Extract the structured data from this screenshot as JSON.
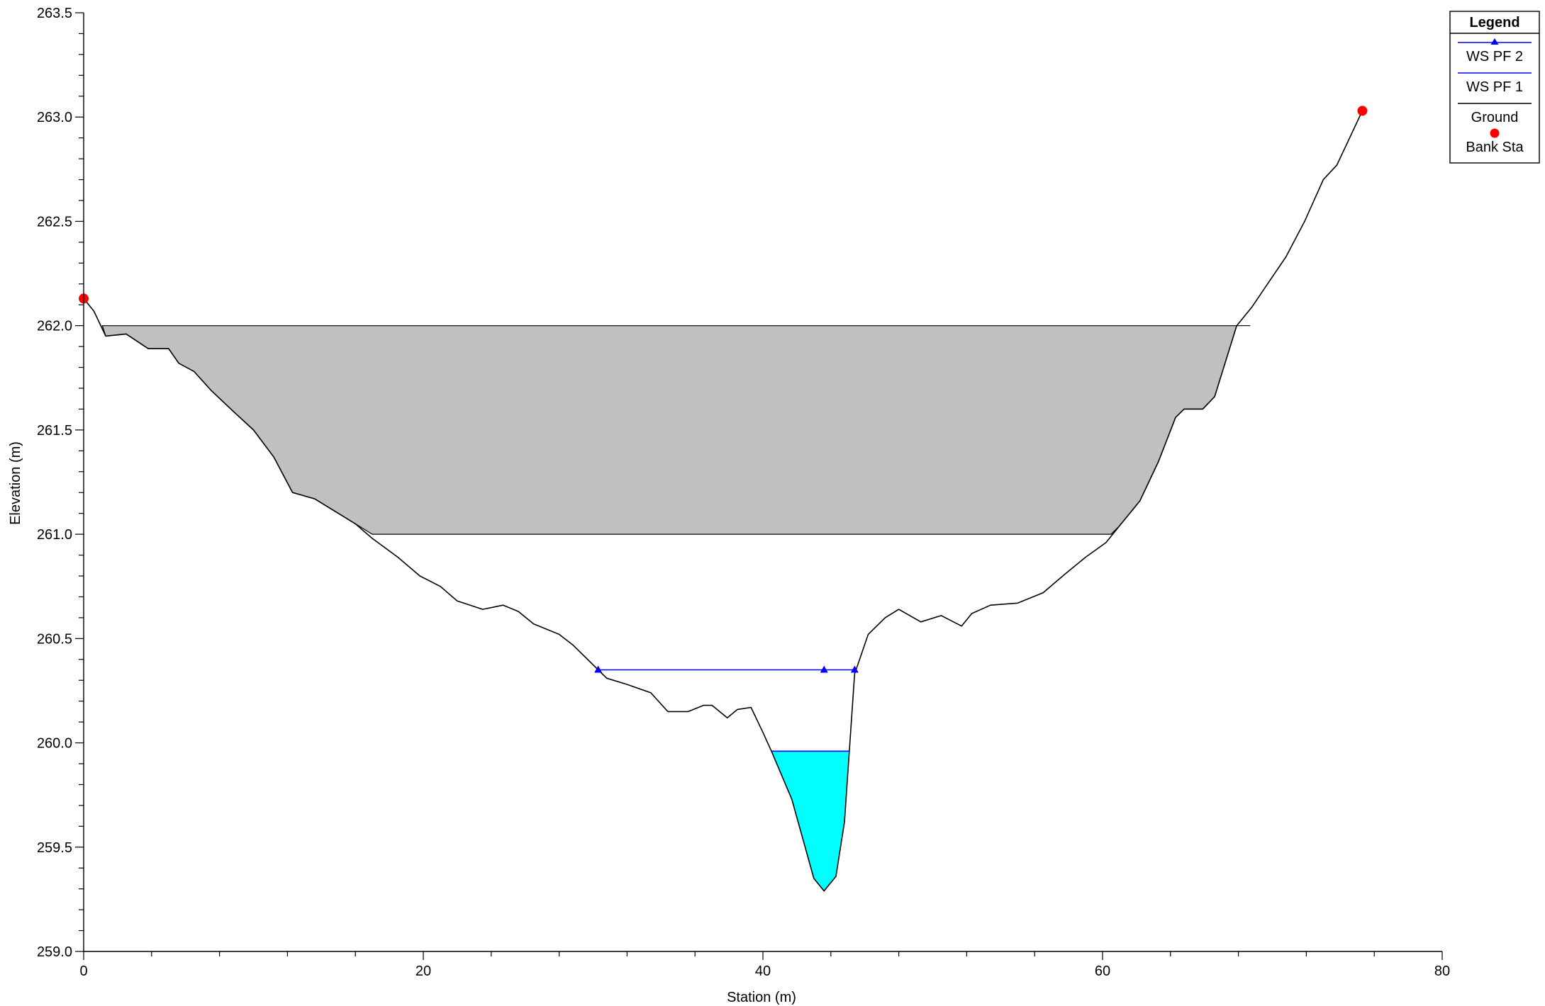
{
  "chart_data": {
    "type": "line",
    "title": "",
    "xlabel": "Station (m)",
    "ylabel": "Elevation (m)",
    "xlim": [
      0,
      80
    ],
    "ylim": [
      259.0,
      263.5
    ],
    "x_ticks": [
      "0",
      "20",
      "40",
      "60",
      "80"
    ],
    "y_ticks": [
      "259.0",
      "259.5",
      "260.0",
      "260.5",
      "261.0",
      "261.5",
      "262.0",
      "262.5",
      "263.0",
      "263.5"
    ],
    "grid": false,
    "legend": {
      "title": "Legend",
      "placement": "top-right",
      "entries": [
        "WS PF 2",
        "WS PF 1",
        "Ground",
        "Bank Sta"
      ]
    },
    "series": [
      {
        "name": "Ground",
        "color": "#000000",
        "points": [
          [
            0.0,
            262.13
          ],
          [
            0.6,
            262.07
          ],
          [
            1.3,
            261.95
          ],
          [
            2.5,
            261.96
          ],
          [
            3.8,
            261.89
          ],
          [
            5.0,
            261.89
          ],
          [
            5.6,
            261.82
          ],
          [
            6.5,
            261.78
          ],
          [
            7.5,
            261.69
          ],
          [
            8.8,
            261.59
          ],
          [
            10.0,
            261.5
          ],
          [
            11.2,
            261.37
          ],
          [
            12.3,
            261.2
          ],
          [
            13.6,
            261.17
          ],
          [
            15.0,
            261.1
          ],
          [
            16.0,
            261.05
          ],
          [
            17.0,
            260.98
          ],
          [
            18.5,
            260.89
          ],
          [
            19.8,
            260.8
          ],
          [
            21.0,
            260.75
          ],
          [
            22.0,
            260.68
          ],
          [
            23.5,
            260.64
          ],
          [
            24.7,
            260.66
          ],
          [
            25.6,
            260.63
          ],
          [
            26.5,
            260.57
          ],
          [
            28.0,
            260.52
          ],
          [
            28.8,
            260.47
          ],
          [
            30.3,
            260.35
          ],
          [
            30.8,
            260.31
          ],
          [
            32.0,
            260.28
          ],
          [
            33.4,
            260.24
          ],
          [
            34.4,
            260.15
          ],
          [
            35.6,
            260.15
          ],
          [
            36.5,
            260.18
          ],
          [
            37.0,
            260.18
          ],
          [
            37.9,
            260.12
          ],
          [
            38.5,
            260.16
          ],
          [
            39.3,
            260.17
          ],
          [
            40.0,
            260.05
          ],
          [
            40.5,
            259.96
          ],
          [
            41.7,
            259.73
          ],
          [
            43.0,
            259.35
          ],
          [
            43.6,
            259.29
          ],
          [
            44.3,
            259.36
          ],
          [
            44.8,
            259.62
          ],
          [
            45.4,
            260.33
          ],
          [
            46.2,
            260.52
          ],
          [
            47.2,
            260.6
          ],
          [
            48.0,
            260.64
          ],
          [
            49.3,
            260.58
          ],
          [
            50.5,
            260.61
          ],
          [
            51.7,
            260.56
          ],
          [
            52.3,
            260.62
          ],
          [
            53.4,
            260.66
          ],
          [
            55.0,
            260.67
          ],
          [
            56.5,
            260.72
          ],
          [
            57.8,
            260.81
          ],
          [
            59.0,
            260.89
          ],
          [
            60.2,
            260.96
          ],
          [
            61.0,
            261.04
          ],
          [
            62.2,
            261.16
          ],
          [
            63.3,
            261.35
          ],
          [
            64.3,
            261.56
          ],
          [
            64.8,
            261.6
          ],
          [
            65.9,
            261.6
          ],
          [
            66.6,
            261.66
          ],
          [
            67.9,
            262.0
          ],
          [
            68.8,
            262.09
          ],
          [
            69.8,
            262.21
          ],
          [
            70.8,
            262.33
          ],
          [
            71.9,
            262.5
          ],
          [
            73.0,
            262.7
          ],
          [
            73.8,
            262.77
          ],
          [
            75.3,
            263.03
          ]
        ]
      },
      {
        "name": "WS PF 2",
        "color": "#0000ff",
        "elevation": 260.35,
        "x_start": 30.3,
        "x_end": 45.4,
        "markers_x": [
          30.3,
          43.6,
          45.4
        ]
      },
      {
        "name": "WS PF 1",
        "color": "#0000ff",
        "elevation": 259.96,
        "x_start": 40.5,
        "x_end": 45.1,
        "fill_color": "#00ffff"
      },
      {
        "name": "Bank Sta",
        "color": "#ff0000",
        "points": [
          [
            0.0,
            262.13
          ],
          [
            75.3,
            263.03
          ]
        ]
      }
    ],
    "blocked_area": {
      "color": "#c0c0c0",
      "x_start": 1.1,
      "x_end": 68.7,
      "top_elevation": 262.0,
      "bottom_elevation": 261.0,
      "bottom_x_start": 17.0,
      "bottom_x_end": 60.5
    }
  }
}
